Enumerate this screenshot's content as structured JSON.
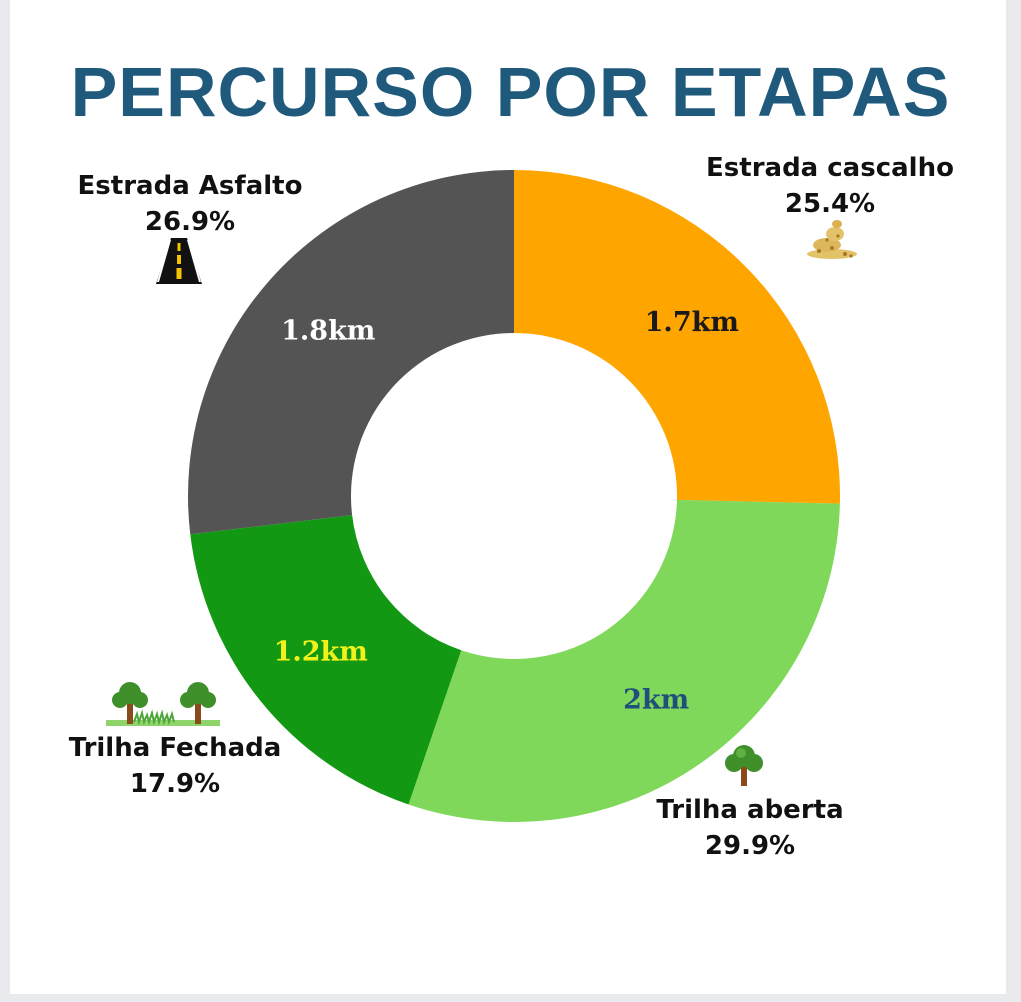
{
  "title": "PERCURSO POR  ETAPAS",
  "chart_data": {
    "type": "pie",
    "variant": "donut",
    "title": "PERCURSO POR  ETAPAS",
    "categories": [
      "Estrada cascalho",
      "Trilha aberta",
      "Trilha Fechada",
      "Estrada Asfalto"
    ],
    "values": [
      25.4,
      29.9,
      17.9,
      26.9
    ],
    "percent_labels": [
      "25.4%",
      "29.9%",
      "17.9%",
      "26.9%"
    ],
    "value_labels": [
      "1.7km",
      "2km",
      "1.2km",
      "1.8km"
    ],
    "colors": [
      "#ffa500",
      "#80d85a",
      "#129812",
      "#545454"
    ],
    "value_label_colors": [
      "#1a1a1a",
      "#1f4f7a",
      "#f2f21a",
      "#ffffff"
    ],
    "icons": [
      "gravel-icon",
      "tree-icon",
      "trees-grass-icon",
      "road-icon"
    ],
    "legend": "none"
  }
}
